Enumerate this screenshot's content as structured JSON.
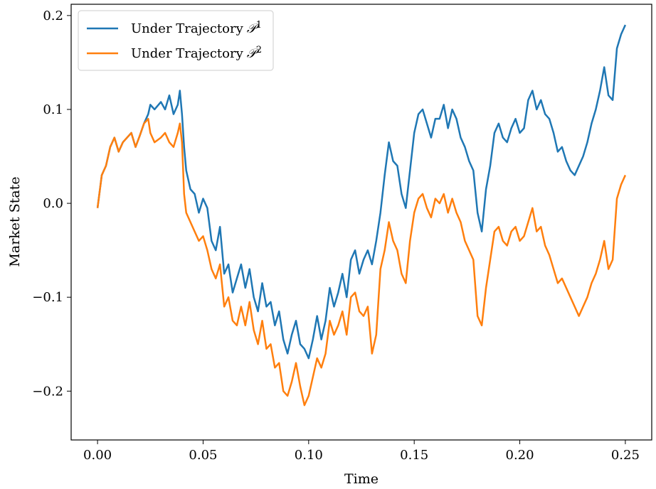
{
  "chart_data": {
    "type": "line",
    "xlabel": "Time",
    "ylabel": "Market State",
    "xlim": [
      -0.0125,
      0.2625
    ],
    "ylim": [
      -0.252,
      0.212
    ],
    "x_ticks": [
      0.0,
      0.05,
      0.1,
      0.15,
      0.2,
      0.25
    ],
    "x_tick_labels": [
      "0.00",
      "0.05",
      "0.10",
      "0.15",
      "0.20",
      "0.25"
    ],
    "y_ticks": [
      -0.2,
      -0.1,
      0.0,
      0.1,
      0.2
    ],
    "y_tick_labels": [
      "−0.2",
      "−0.1",
      "0.0",
      "0.1",
      "0.2"
    ],
    "grid": false,
    "legend_position": "top-left",
    "series": [
      {
        "name": "Under Trajectory",
        "sup": "1",
        "color": "#1f77b4",
        "x": [
          0.0,
          0.002,
          0.004,
          0.006,
          0.008,
          0.01,
          0.012,
          0.014,
          0.016,
          0.018,
          0.02,
          0.022,
          0.024,
          0.025,
          0.027,
          0.03,
          0.032,
          0.034,
          0.036,
          0.038,
          0.039,
          0.04,
          0.041,
          0.042,
          0.044,
          0.046,
          0.048,
          0.05,
          0.052,
          0.054,
          0.056,
          0.058,
          0.06,
          0.062,
          0.064,
          0.066,
          0.068,
          0.07,
          0.072,
          0.074,
          0.076,
          0.078,
          0.08,
          0.082,
          0.084,
          0.086,
          0.088,
          0.09,
          0.092,
          0.094,
          0.096,
          0.098,
          0.1,
          0.102,
          0.104,
          0.106,
          0.108,
          0.11,
          0.112,
          0.114,
          0.116,
          0.118,
          0.12,
          0.122,
          0.124,
          0.126,
          0.128,
          0.13,
          0.132,
          0.134,
          0.136,
          0.138,
          0.14,
          0.142,
          0.144,
          0.146,
          0.148,
          0.15,
          0.152,
          0.154,
          0.156,
          0.158,
          0.16,
          0.162,
          0.164,
          0.166,
          0.168,
          0.17,
          0.172,
          0.174,
          0.176,
          0.178,
          0.18,
          0.182,
          0.184,
          0.186,
          0.188,
          0.19,
          0.192,
          0.194,
          0.196,
          0.198,
          0.2,
          0.202,
          0.204,
          0.206,
          0.208,
          0.21,
          0.212,
          0.214,
          0.216,
          0.218,
          0.22,
          0.222,
          0.224,
          0.226,
          0.228,
          0.23,
          0.232,
          0.234,
          0.236,
          0.238,
          0.24,
          0.242,
          0.244,
          0.246,
          0.248,
          0.25
        ],
        "y": [
          -0.005,
          0.03,
          0.04,
          0.06,
          0.07,
          0.055,
          0.065,
          0.07,
          0.075,
          0.06,
          0.072,
          0.085,
          0.095,
          0.105,
          0.1,
          0.108,
          0.1,
          0.115,
          0.095,
          0.105,
          0.12,
          0.095,
          0.06,
          0.035,
          0.015,
          0.01,
          -0.01,
          0.005,
          -0.005,
          -0.04,
          -0.05,
          -0.025,
          -0.075,
          -0.065,
          -0.095,
          -0.08,
          -0.065,
          -0.09,
          -0.07,
          -0.1,
          -0.115,
          -0.085,
          -0.11,
          -0.105,
          -0.13,
          -0.115,
          -0.145,
          -0.16,
          -0.14,
          -0.125,
          -0.15,
          -0.155,
          -0.165,
          -0.145,
          -0.12,
          -0.145,
          -0.125,
          -0.09,
          -0.11,
          -0.095,
          -0.075,
          -0.1,
          -0.06,
          -0.05,
          -0.075,
          -0.06,
          -0.05,
          -0.065,
          -0.04,
          -0.01,
          0.03,
          0.065,
          0.045,
          0.04,
          0.01,
          -0.005,
          0.035,
          0.075,
          0.095,
          0.1,
          0.085,
          0.07,
          0.09,
          0.09,
          0.105,
          0.08,
          0.1,
          0.09,
          0.07,
          0.06,
          0.045,
          0.035,
          -0.01,
          -0.03,
          0.015,
          0.04,
          0.075,
          0.085,
          0.07,
          0.065,
          0.08,
          0.09,
          0.075,
          0.08,
          0.11,
          0.12,
          0.1,
          0.11,
          0.095,
          0.09,
          0.075,
          0.055,
          0.06,
          0.045,
          0.035,
          0.03,
          0.04,
          0.05,
          0.065,
          0.085,
          0.1,
          0.12,
          0.145,
          0.115,
          0.11,
          0.165,
          0.18,
          0.19
        ]
      },
      {
        "name": "Under Trajectory",
        "sup": "2",
        "color": "#ff7f0e",
        "x": [
          0.0,
          0.002,
          0.004,
          0.006,
          0.008,
          0.01,
          0.012,
          0.014,
          0.016,
          0.018,
          0.02,
          0.022,
          0.024,
          0.025,
          0.027,
          0.03,
          0.032,
          0.034,
          0.036,
          0.038,
          0.039,
          0.04,
          0.041,
          0.042,
          0.044,
          0.046,
          0.048,
          0.05,
          0.052,
          0.054,
          0.056,
          0.058,
          0.06,
          0.062,
          0.064,
          0.066,
          0.068,
          0.07,
          0.072,
          0.074,
          0.076,
          0.078,
          0.08,
          0.082,
          0.084,
          0.086,
          0.088,
          0.09,
          0.092,
          0.094,
          0.096,
          0.098,
          0.1,
          0.102,
          0.104,
          0.106,
          0.108,
          0.11,
          0.112,
          0.114,
          0.116,
          0.118,
          0.12,
          0.122,
          0.124,
          0.126,
          0.128,
          0.13,
          0.132,
          0.134,
          0.136,
          0.138,
          0.14,
          0.142,
          0.144,
          0.146,
          0.148,
          0.15,
          0.152,
          0.154,
          0.156,
          0.158,
          0.16,
          0.162,
          0.164,
          0.166,
          0.168,
          0.17,
          0.172,
          0.174,
          0.176,
          0.178,
          0.18,
          0.182,
          0.184,
          0.186,
          0.188,
          0.19,
          0.192,
          0.194,
          0.196,
          0.198,
          0.2,
          0.202,
          0.204,
          0.206,
          0.208,
          0.21,
          0.212,
          0.214,
          0.216,
          0.218,
          0.22,
          0.222,
          0.224,
          0.226,
          0.228,
          0.23,
          0.232,
          0.234,
          0.236,
          0.238,
          0.24,
          0.242,
          0.244,
          0.246,
          0.248,
          0.25
        ],
        "y": [
          -0.005,
          0.03,
          0.04,
          0.06,
          0.07,
          0.055,
          0.065,
          0.07,
          0.075,
          0.06,
          0.072,
          0.085,
          0.09,
          0.075,
          0.065,
          0.07,
          0.075,
          0.065,
          0.06,
          0.075,
          0.085,
          0.065,
          0.01,
          -0.01,
          -0.02,
          -0.03,
          -0.04,
          -0.035,
          -0.05,
          -0.07,
          -0.08,
          -0.065,
          -0.11,
          -0.1,
          -0.125,
          -0.13,
          -0.11,
          -0.13,
          -0.105,
          -0.135,
          -0.15,
          -0.125,
          -0.155,
          -0.15,
          -0.175,
          -0.17,
          -0.2,
          -0.205,
          -0.19,
          -0.17,
          -0.195,
          -0.215,
          -0.205,
          -0.185,
          -0.165,
          -0.175,
          -0.16,
          -0.125,
          -0.14,
          -0.13,
          -0.115,
          -0.14,
          -0.1,
          -0.095,
          -0.115,
          -0.12,
          -0.11,
          -0.16,
          -0.14,
          -0.07,
          -0.05,
          -0.02,
          -0.04,
          -0.05,
          -0.075,
          -0.085,
          -0.04,
          -0.01,
          0.005,
          0.01,
          -0.005,
          -0.015,
          0.005,
          0.0,
          0.01,
          -0.01,
          0.005,
          -0.01,
          -0.02,
          -0.04,
          -0.05,
          -0.06,
          -0.12,
          -0.13,
          -0.09,
          -0.06,
          -0.03,
          -0.025,
          -0.04,
          -0.045,
          -0.03,
          -0.025,
          -0.04,
          -0.035,
          -0.02,
          -0.005,
          -0.03,
          -0.025,
          -0.045,
          -0.055,
          -0.07,
          -0.085,
          -0.08,
          -0.09,
          -0.1,
          -0.11,
          -0.12,
          -0.11,
          -0.1,
          -0.085,
          -0.075,
          -0.06,
          -0.04,
          -0.07,
          -0.06,
          0.005,
          0.02,
          0.03
        ]
      }
    ]
  }
}
